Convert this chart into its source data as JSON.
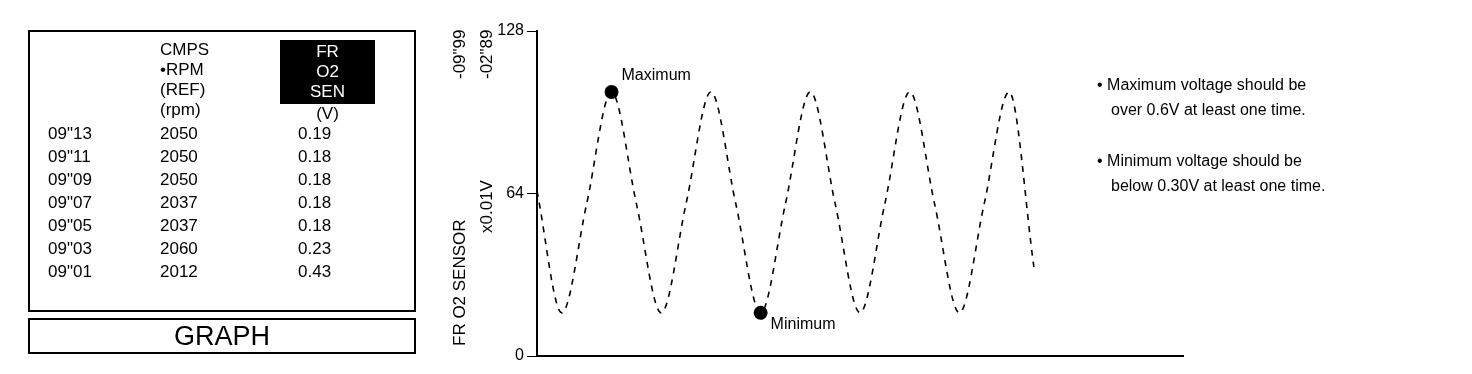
{
  "chart_data": [
    {
      "type": "other",
      "categories": [
        null,
        "CMPS\n•RPM\n(REF)\n(rpm)",
        "FR\nO2\nSEN\n(V)"
      ],
      "y_categories": [
        "09\"13",
        "09\"11",
        "09\"09",
        "09\"07",
        "09\"05",
        "09\"03",
        "09\"01"
      ],
      "cell_labels": [
        [
          "2050",
          "0.19"
        ],
        [
          "2050",
          "0.18"
        ],
        [
          "2050",
          "0.18"
        ],
        [
          "2037",
          "0.18"
        ],
        [
          "2037",
          "0.18"
        ],
        [
          "2060",
          "0.23"
        ],
        [
          "2012",
          "0.43"
        ]
      ],
      "annotations": [
        "GRAPH"
      ]
    },
    {
      "type": "line",
      "categories": [
        null,
        null,
        null,
        null,
        null,
        null,
        null,
        null,
        null,
        null,
        null,
        null,
        null,
        null,
        null,
        null,
        null,
        null,
        null,
        null,
        null,
        null,
        null,
        null,
        null,
        null,
        null
      ],
      "ylim": [
        0,
        128
      ],
      "yticks": [
        0,
        64,
        128
      ],
      "ylabel": "FR O2 SENSOR",
      "grid": false,
      "tick_labels": "y",
      "series": [
        {
          "type": "line",
          "color": "#000000",
          "line_style": "dashed",
          "marker": "none",
          "values": [
            65,
            17,
            60,
            104,
            60,
            17,
            60,
            104,
            60,
            17,
            60,
            104,
            60,
            17,
            60,
            104,
            60,
            17,
            60,
            104,
            35,
            null,
            null,
            null,
            null,
            null,
            null
          ]
        },
        {
          "type": "scatter",
          "color": "#000000",
          "marker": "circle",
          "values": [
            null,
            null,
            null,
            104,
            null,
            null,
            null,
            null,
            null,
            17,
            null,
            null,
            null,
            null,
            null,
            null,
            null,
            null,
            null,
            null,
            null,
            null,
            null,
            null,
            null,
            null,
            null
          ]
        }
      ],
      "annotations": [
        "x0.01V",
        "-09\"99",
        "-02\"89",
        "Maximum",
        "Minimum",
        "• Maximum voltage should be over 0.6V at least one time.",
        "• Minimum voltage should be below 0.30V at least one time."
      ]
    }
  ]
}
